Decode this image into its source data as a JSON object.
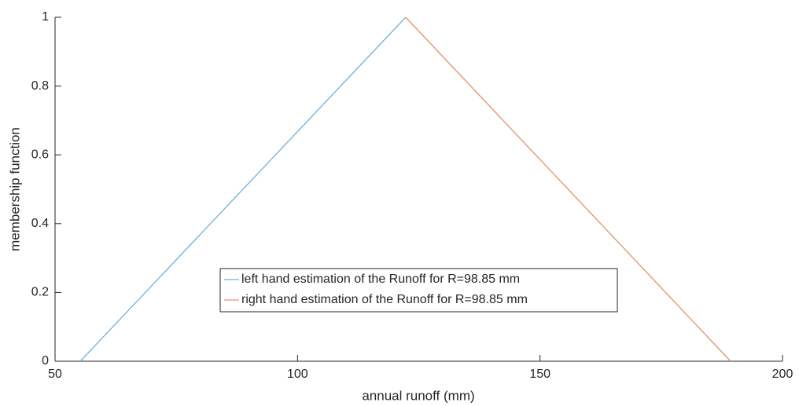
{
  "chart_data": {
    "type": "line",
    "xlabel": "annual runoff (mm)",
    "ylabel": "membership function",
    "series": [
      {
        "name": "left hand estimation of the Runoff for R=98.85 mm",
        "color": "#6fb0dc",
        "x": [
          55.2,
          122.3
        ],
        "values": [
          0,
          1
        ]
      },
      {
        "name": "right hand estimation of the Runoff for R=98.85 mm",
        "color": "#e5906a",
        "x": [
          122.3,
          189.3
        ],
        "values": [
          1,
          0
        ]
      }
    ],
    "xlim": [
      50,
      200
    ],
    "xticks": [
      50,
      100,
      150,
      200
    ],
    "ylim": [
      0,
      1
    ],
    "yticks": [
      0,
      0.2,
      0.4,
      0.6,
      0.8,
      1
    ],
    "grid": false,
    "legend": "center"
  }
}
